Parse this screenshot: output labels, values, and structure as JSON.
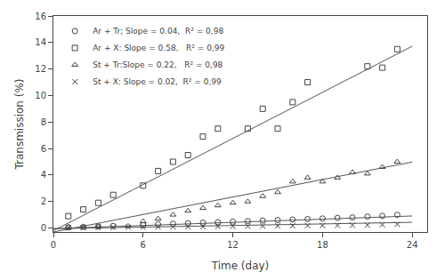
{
  "chart_data": {
    "type": "scatter",
    "xlabel": "Time (day)",
    "ylabel": "Transmission (%)",
    "xlim": [
      0,
      25
    ],
    "ylim": [
      -0.3,
      16
    ],
    "xticks": [
      0,
      6,
      12,
      18,
      24
    ],
    "yticks": [
      0,
      2,
      4,
      6,
      8,
      10,
      12,
      14,
      16
    ],
    "grid": false,
    "legend": "upper left",
    "series": [
      {
        "name": "Ar + Tr; Slope = 0.04,  R² = 0,98",
        "marker": "circle",
        "color": "#444444",
        "x": [
          1,
          2,
          3,
          4,
          6,
          7,
          8,
          9,
          10,
          11,
          12,
          13,
          14,
          15,
          16,
          17,
          18,
          19,
          20,
          21,
          22,
          23
        ],
        "values": [
          0.05,
          0.08,
          0.12,
          0.16,
          0.22,
          0.28,
          0.32,
          0.36,
          0.4,
          0.44,
          0.48,
          0.52,
          0.56,
          0.6,
          0.64,
          0.68,
          0.72,
          0.76,
          0.8,
          0.86,
          0.92,
          1.0
        ],
        "trendline": {
          "x": [
            0,
            24
          ],
          "values": [
            -0.05,
            0.91
          ],
          "color": "#555555",
          "line_style": "solid"
        }
      },
      {
        "name": "Ar + X: Slope = 0.58,   R² = 0,99",
        "marker": "square",
        "color": "#444444",
        "x": [
          1,
          2,
          3,
          4,
          6,
          7,
          8,
          9,
          10,
          11,
          13,
          14,
          15,
          16,
          17,
          21,
          22,
          23
        ],
        "values": [
          0.9,
          1.4,
          1.9,
          2.5,
          3.2,
          4.3,
          5.0,
          5.5,
          6.9,
          7.5,
          7.5,
          9.0,
          7.5,
          9.5,
          11.0,
          12.2,
          12.1,
          13.5
        ],
        "trendline": {
          "x": [
            0,
            24
          ],
          "values": [
            -0.2,
            13.72
          ],
          "color": "#555555",
          "line_style": "solid"
        }
      },
      {
        "name": "St + Tr:Slope = 0.22,   R² = 0,98",
        "marker": "triangle",
        "color": "#444444",
        "x": [
          1,
          2,
          3,
          5,
          6,
          7,
          8,
          9,
          10,
          11,
          12,
          13,
          14,
          15,
          16,
          17,
          18,
          19,
          20,
          21,
          22,
          23
        ],
        "values": [
          0.05,
          0.08,
          0.1,
          0.15,
          0.5,
          0.7,
          1.0,
          1.3,
          1.5,
          1.7,
          1.9,
          2.0,
          2.4,
          2.7,
          3.5,
          3.8,
          3.5,
          3.8,
          4.2,
          4.1,
          4.6,
          5.0
        ],
        "trendline": {
          "x": [
            0,
            24
          ],
          "values": [
            -0.3,
            4.98
          ],
          "color": "#555555",
          "line_style": "solid"
        }
      },
      {
        "name": "St + X: Slope = 0.02,  R² = 0,99",
        "marker": "x",
        "color": "#444444",
        "x": [
          1,
          2,
          3,
          4,
          5,
          6,
          7,
          8,
          9,
          10,
          11,
          12,
          13,
          14,
          15,
          16,
          17,
          18,
          19,
          20,
          21,
          22,
          23
        ],
        "values": [
          0.02,
          0.03,
          0.04,
          0.05,
          0.06,
          0.07,
          0.08,
          0.09,
          0.1,
          0.11,
          0.12,
          0.13,
          0.14,
          0.15,
          0.16,
          0.17,
          0.18,
          0.19,
          0.2,
          0.21,
          0.22,
          0.25,
          0.28
        ],
        "trendline": {
          "x": [
            0,
            24
          ],
          "values": [
            -0.05,
            0.43
          ],
          "color": "#555555",
          "line_style": "solid"
        }
      }
    ]
  }
}
